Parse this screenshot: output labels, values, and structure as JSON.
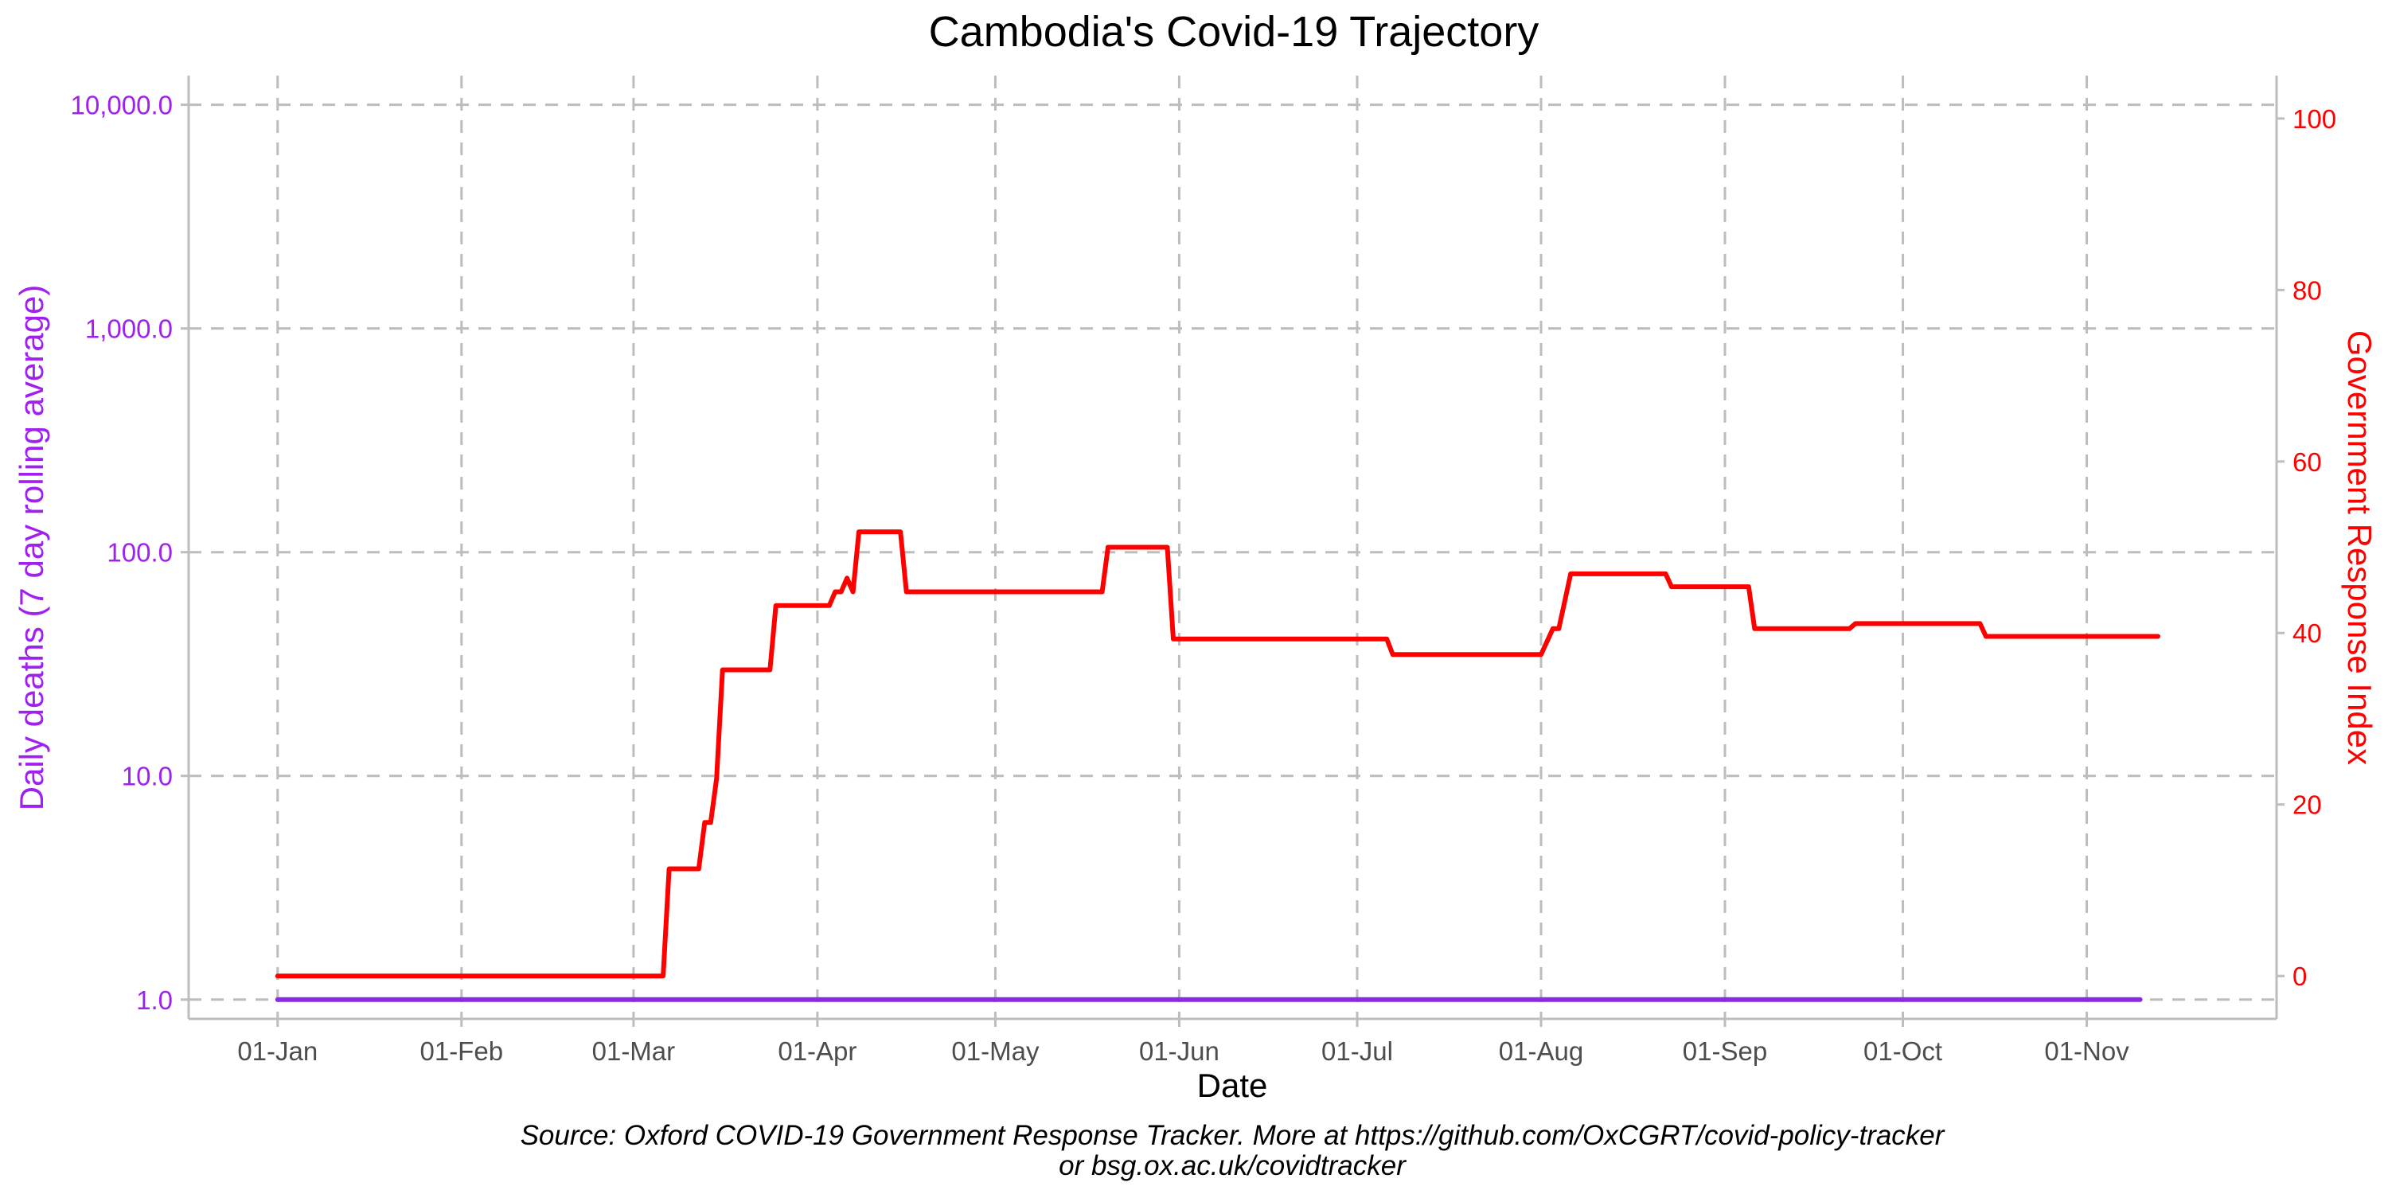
{
  "chart_data": {
    "type": "line",
    "title": "Cambodia's Covid-19 Trajectory",
    "xlabel": "Date",
    "ylabel": "Daily deaths (7 day rolling average)",
    "y2label": "Government Response Index",
    "caption_line1": "Source: Oxford COVID-19 Government Response Tracker. More at https://github.com/OxCGRT/covid-policy-tracker",
    "caption_line2": "or bsg.ox.ac.uk/covidtracker",
    "x_ticks": [
      {
        "date": "2020-01-01",
        "label": "01-Jan"
      },
      {
        "date": "2020-02-01",
        "label": "01-Feb"
      },
      {
        "date": "2020-03-01",
        "label": "01-Mar"
      },
      {
        "date": "2020-04-01",
        "label": "01-Apr"
      },
      {
        "date": "2020-05-01",
        "label": "01-May"
      },
      {
        "date": "2020-06-01",
        "label": "01-Jun"
      },
      {
        "date": "2020-07-01",
        "label": "01-Jul"
      },
      {
        "date": "2020-08-01",
        "label": "01-Aug"
      },
      {
        "date": "2020-09-01",
        "label": "01-Sep"
      },
      {
        "date": "2020-10-01",
        "label": "01-Oct"
      },
      {
        "date": "2020-11-01",
        "label": "01-Nov"
      }
    ],
    "xlim": [
      "2019-12-17",
      "2020-12-03"
    ],
    "y_scale": "log",
    "y_ticks": [
      {
        "value": 1,
        "label": "1.0"
      },
      {
        "value": 10,
        "label": "10.0"
      },
      {
        "value": 100,
        "label": "100.0"
      },
      {
        "value": 1000,
        "label": "1,000.0"
      },
      {
        "value": 10000,
        "label": "10,000.0"
      }
    ],
    "ylim": [
      0.82,
      13500
    ],
    "y2_ticks": [
      {
        "value": 0,
        "label": "0"
      },
      {
        "value": 20,
        "label": "20"
      },
      {
        "value": 40,
        "label": "40"
      },
      {
        "value": 60,
        "label": "60"
      },
      {
        "value": 80,
        "label": "80"
      },
      {
        "value": 100,
        "label": "100"
      }
    ],
    "y2lim": [
      -5,
      105
    ],
    "grid": true,
    "series": [
      {
        "axis": "left",
        "color": "#8a2be2",
        "points": [
          {
            "x": "2020-01-01",
            "y": 1
          },
          {
            "x": "2020-11-10",
            "y": 1
          }
        ]
      },
      {
        "axis": "right",
        "color": "#ff0000",
        "points": [
          {
            "x": "2020-01-01",
            "y": 0
          },
          {
            "x": "2020-03-06",
            "y": 0
          },
          {
            "x": "2020-03-07",
            "y": 12.5
          },
          {
            "x": "2020-03-12",
            "y": 12.5
          },
          {
            "x": "2020-03-13",
            "y": 17.9
          },
          {
            "x": "2020-03-14",
            "y": 17.9
          },
          {
            "x": "2020-03-15",
            "y": 23
          },
          {
            "x": "2020-03-16",
            "y": 35.7
          },
          {
            "x": "2020-03-24",
            "y": 35.7
          },
          {
            "x": "2020-03-25",
            "y": 43.2
          },
          {
            "x": "2020-04-03",
            "y": 43.2
          },
          {
            "x": "2020-04-04",
            "y": 44.8
          },
          {
            "x": "2020-04-05",
            "y": 44.8
          },
          {
            "x": "2020-04-06",
            "y": 46.4
          },
          {
            "x": "2020-04-07",
            "y": 44.8
          },
          {
            "x": "2020-04-08",
            "y": 51.8
          },
          {
            "x": "2020-04-15",
            "y": 51.8
          },
          {
            "x": "2020-04-16",
            "y": 44.8
          },
          {
            "x": "2020-05-19",
            "y": 44.8
          },
          {
            "x": "2020-05-20",
            "y": 50
          },
          {
            "x": "2020-05-30",
            "y": 50
          },
          {
            "x": "2020-05-31",
            "y": 39.3
          },
          {
            "x": "2020-07-06",
            "y": 39.3
          },
          {
            "x": "2020-07-07",
            "y": 37.5
          },
          {
            "x": "2020-08-01",
            "y": 37.5
          },
          {
            "x": "2020-08-03",
            "y": 40.5
          },
          {
            "x": "2020-08-04",
            "y": 40.5
          },
          {
            "x": "2020-08-06",
            "y": 46.9
          },
          {
            "x": "2020-08-22",
            "y": 46.9
          },
          {
            "x": "2020-08-23",
            "y": 45.4
          },
          {
            "x": "2020-09-05",
            "y": 45.4
          },
          {
            "x": "2020-09-06",
            "y": 40.5
          },
          {
            "x": "2020-09-22",
            "y": 40.5
          },
          {
            "x": "2020-09-23",
            "y": 41.1
          },
          {
            "x": "2020-10-14",
            "y": 41.1
          },
          {
            "x": "2020-10-15",
            "y": 39.6
          },
          {
            "x": "2020-11-13",
            "y": 39.6
          }
        ]
      }
    ]
  },
  "colors": {
    "left_axis": "#a020f0",
    "right_axis": "#ff0000",
    "grid": "#bdbdbd",
    "frame": "#bdbdbd",
    "tick_text": "#4d4d4d"
  }
}
